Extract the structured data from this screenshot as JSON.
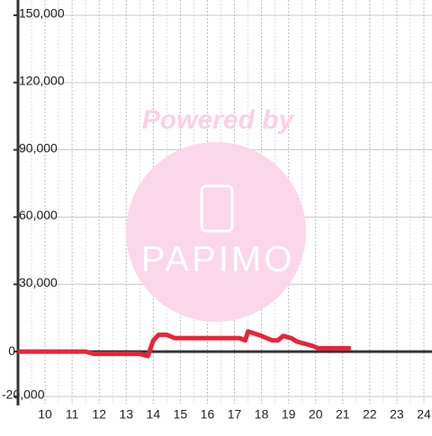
{
  "chart_data": {
    "type": "line",
    "watermark": {
      "text": "Powered by",
      "logo": "PAPIMO"
    },
    "xlim": [
      9,
      24.3
    ],
    "xticks": [
      10,
      11,
      12,
      13,
      14,
      15,
      16,
      17,
      18,
      19,
      20,
      21,
      22,
      23,
      24
    ],
    "ylim": [
      -20000,
      150000
    ],
    "yticks": [
      {
        "value": -20000,
        "label": "-20,000"
      },
      0,
      {
        "value": 30000,
        "label": "30,000"
      },
      {
        "value": 60000,
        "label": "60,000"
      },
      {
        "value": 90000,
        "label": "90,000"
      },
      {
        "value": 120000,
        "label": "120,000"
      },
      {
        "value": 150000,
        "label": "150,000"
      }
    ],
    "grid": true,
    "series": [
      {
        "color": "#e8243a",
        "x": [
          9,
          11.5,
          11.8,
          13.5,
          13.8,
          14.0,
          14.2,
          14.5,
          14.8,
          17.2,
          17.4,
          17.5,
          18.0,
          18.4,
          18.6,
          18.8,
          19.1,
          19.3,
          19.6,
          19.9,
          20.1,
          21.3
        ],
        "values": [
          0,
          0,
          -1000,
          -1000,
          -2000,
          5000,
          7500,
          7500,
          6000,
          6000,
          5000,
          9000,
          7000,
          5000,
          5000,
          7000,
          6000,
          4500,
          3500,
          2500,
          1500,
          1500
        ]
      }
    ]
  }
}
